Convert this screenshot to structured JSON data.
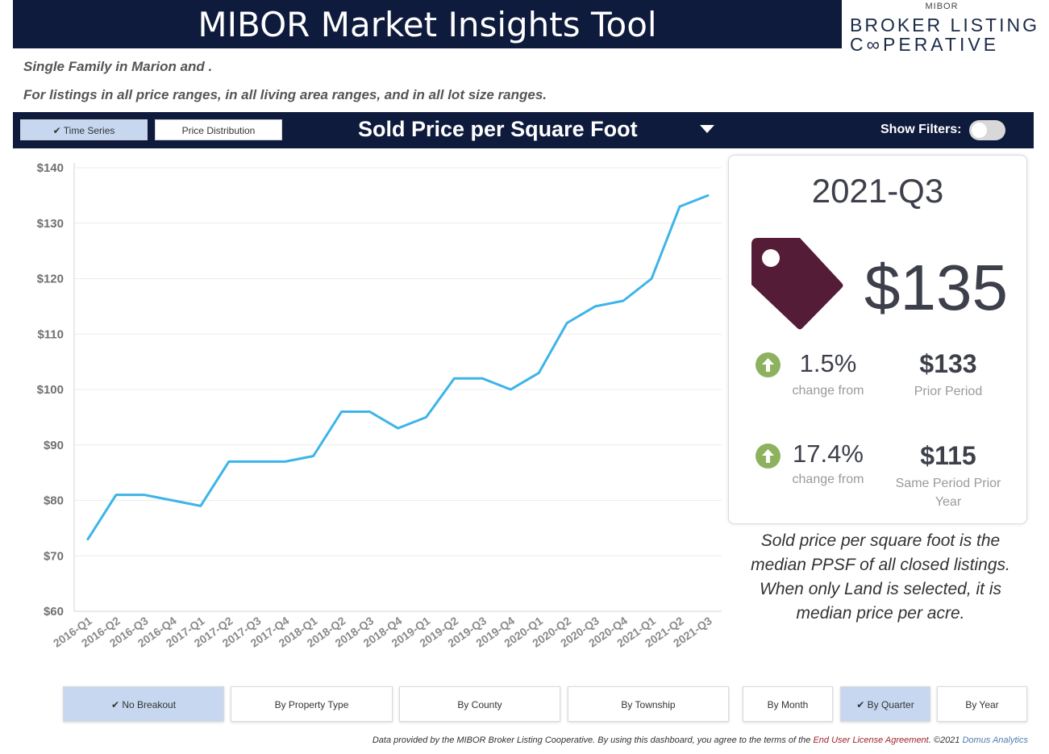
{
  "header": {
    "title": "MIBOR Market Insights Tool",
    "logo": {
      "small": "MIBOR",
      "line1": "BROKER LISTING",
      "line2": "C∞PERATIVE"
    }
  },
  "subtitles": {
    "line1": "Single Family in Marion and .",
    "line2": "For listings in all price ranges, in all living area ranges, and in all lot size ranges."
  },
  "toolbar": {
    "time_series": "✔ Time Series",
    "price_distribution": "Price Distribution",
    "metric": "Sold Price per Square Foot",
    "show_filters": "Show Filters:"
  },
  "chart_data": {
    "type": "line",
    "categories": [
      "2016-Q1",
      "2016-Q2",
      "2016-Q3",
      "2016-Q4",
      "2017-Q1",
      "2017-Q2",
      "2017-Q3",
      "2017-Q4",
      "2018-Q1",
      "2018-Q2",
      "2018-Q3",
      "2018-Q4",
      "2019-Q1",
      "2019-Q2",
      "2019-Q3",
      "2019-Q4",
      "2020-Q1",
      "2020-Q2",
      "2020-Q3",
      "2020-Q4",
      "2021-Q1",
      "2021-Q2",
      "2021-Q3"
    ],
    "values": [
      73,
      81,
      81,
      80,
      79,
      87,
      87,
      87,
      88,
      96,
      96,
      93,
      95,
      102,
      102,
      100,
      103,
      112,
      115,
      116,
      120,
      133,
      135
    ],
    "ylim": [
      60,
      140
    ],
    "yticks": [
      "$60",
      "$70",
      "$80",
      "$90",
      "$100",
      "$110",
      "$120",
      "$130",
      "$140"
    ],
    "line_color": "#3db4e8",
    "grid": true
  },
  "card": {
    "period": "2021-Q3",
    "value": "$135",
    "tag_color": "#541c36",
    "change1": {
      "pct": "1.5%",
      "label": "change from",
      "value": "$133",
      "desc": "Prior Period"
    },
    "change2": {
      "pct": "17.4%",
      "label": "change from",
      "value": "$115",
      "desc_line1": "Same Period Prior",
      "desc_line2": "Year"
    }
  },
  "note": {
    "line1": "Sold price per square foot is the",
    "line2": "median PPSF of all closed listings.",
    "line3": "When only Land is selected, it is",
    "line4": "median price per acre."
  },
  "breakout": {
    "no_breakout": "✔ No Breakout",
    "by_property_type": "By Property Type",
    "by_county": "By County",
    "by_township": "By Township",
    "by_month": "By Month",
    "by_quarter": "✔ By Quarter",
    "by_year": "By Year"
  },
  "footer": {
    "text1": "Data provided by the MIBOR Broker Listing Cooperative.  By using this dashboard, you agree to the terms of the ",
    "eula": "End User License Agreement",
    "text2": ".  ©2021 ",
    "domus": "Domus Analytics"
  }
}
